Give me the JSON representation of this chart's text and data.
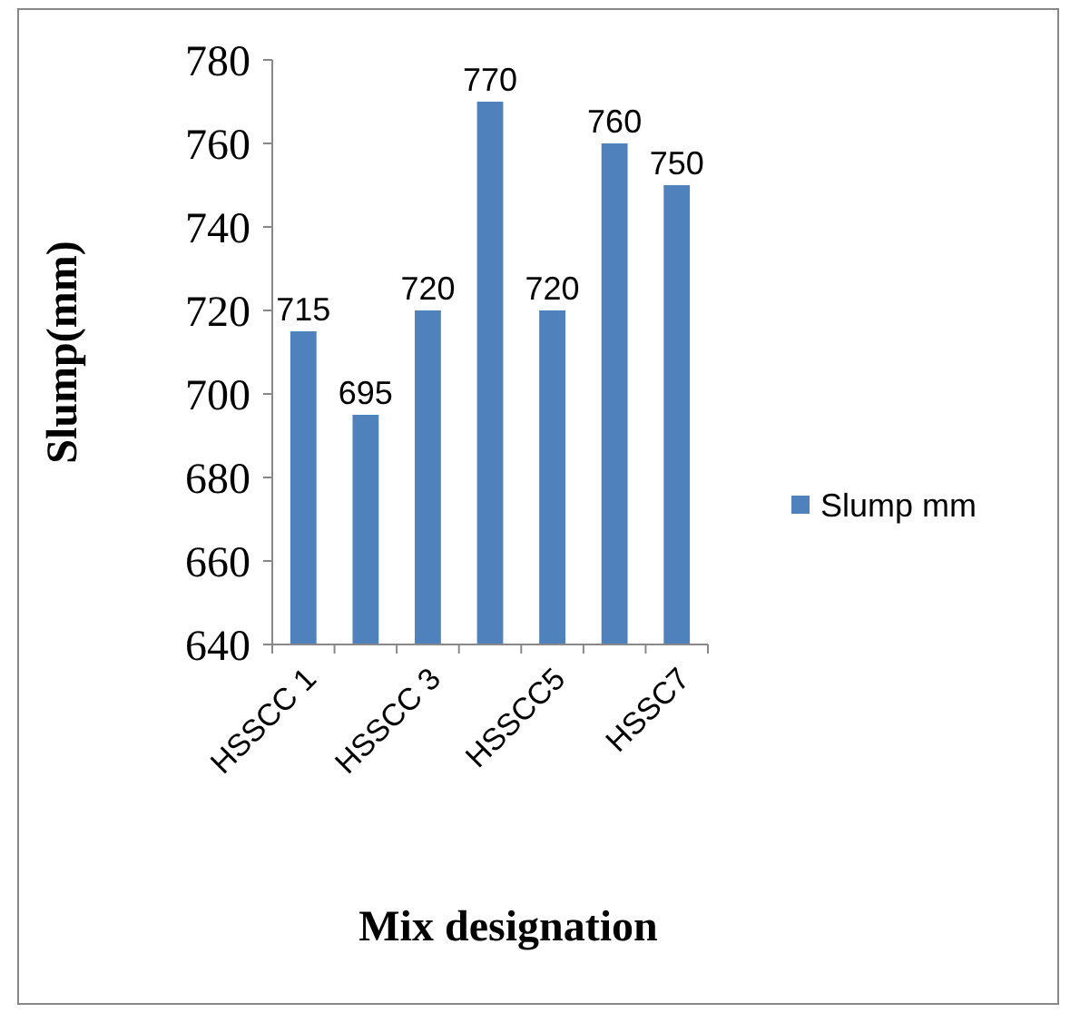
{
  "chart_data": {
    "type": "bar",
    "xlabel": "Mix designation",
    "ylabel": "Slump(mm)",
    "categories": [
      "HSSCC 1",
      null,
      "HSSCC 3",
      null,
      "HSSCC5",
      null,
      "HSSC7"
    ],
    "series": [
      {
        "name": "Slump mm",
        "color": "#4f81bd",
        "values": [
          715,
          695,
          720,
          770,
          720,
          760,
          750
        ]
      }
    ],
    "ylim": [
      640,
      780
    ],
    "yticks": [
      640,
      660,
      680,
      700,
      720,
      740,
      760,
      780
    ],
    "data_labels": true,
    "legend": "right"
  }
}
